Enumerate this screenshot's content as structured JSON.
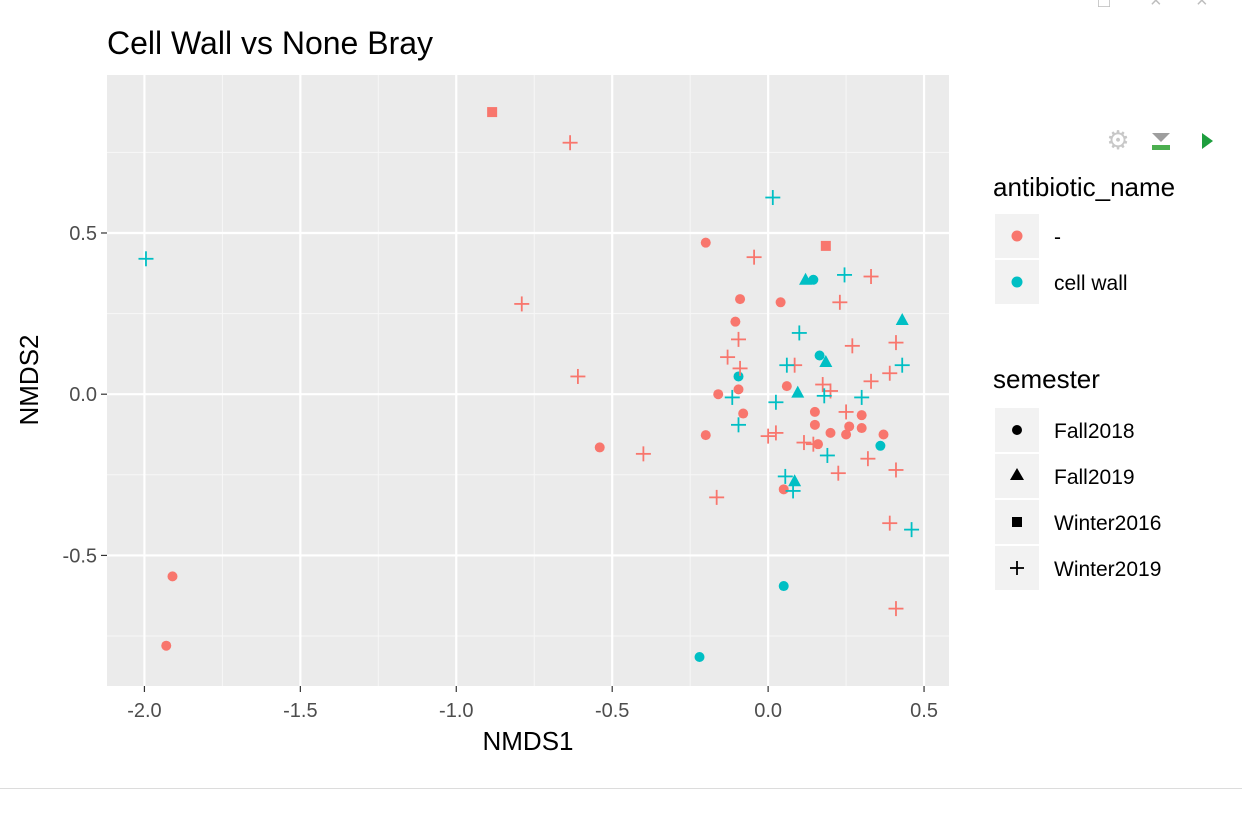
{
  "chart_data": {
    "type": "scatter",
    "title": "Cell Wall vs None Bray",
    "xlabel": "NMDS1",
    "ylabel": "NMDS2",
    "xlim": [
      -2.12,
      0.58
    ],
    "ylim": [
      -0.905,
      0.99
    ],
    "x_ticks": [
      -2.0,
      -1.5,
      -1.0,
      -0.5,
      0.0,
      0.5
    ],
    "x_tick_labels": [
      "-2.0",
      "-1.5",
      "-1.0",
      "-0.5",
      "0.0",
      "0.5"
    ],
    "y_ticks": [
      -0.5,
      0.0,
      0.5
    ],
    "y_tick_labels": [
      "-0.5",
      "0.0",
      "0.5"
    ],
    "grid": true,
    "legend_placement": "right",
    "colors": {
      "none": "#f8766d",
      "cell_wall": "#00bfc4"
    },
    "legends": [
      {
        "title": "antibiotic_name",
        "entries": [
          {
            "label": "-",
            "color": "#f8766d"
          },
          {
            "label": "cell wall",
            "color": "#00bfc4"
          }
        ]
      },
      {
        "title": "semester",
        "entries": [
          {
            "label": "Fall2018",
            "shape": "circle"
          },
          {
            "label": "Fall2019",
            "shape": "triangle"
          },
          {
            "label": "Winter2016",
            "shape": "square"
          },
          {
            "label": "Winter2019",
            "shape": "plus"
          }
        ]
      }
    ],
    "points": [
      {
        "x": -1.91,
        "y": -0.565,
        "group": "-",
        "semester": "Fall2018"
      },
      {
        "x": -1.93,
        "y": -0.78,
        "group": "-",
        "semester": "Fall2018"
      },
      {
        "x": -0.54,
        "y": -0.165,
        "group": "-",
        "semester": "Fall2018"
      },
      {
        "x": -0.2,
        "y": 0.47,
        "group": "-",
        "semester": "Fall2018"
      },
      {
        "x": -0.2,
        "y": -0.127,
        "group": "-",
        "semester": "Fall2018"
      },
      {
        "x": -0.16,
        "y": 0.0,
        "group": "-",
        "semester": "Fall2018"
      },
      {
        "x": -0.105,
        "y": 0.225,
        "group": "-",
        "semester": "Fall2018"
      },
      {
        "x": -0.09,
        "y": 0.295,
        "group": "-",
        "semester": "Fall2018"
      },
      {
        "x": -0.095,
        "y": 0.015,
        "group": "-",
        "semester": "Fall2018"
      },
      {
        "x": -0.08,
        "y": -0.06,
        "group": "-",
        "semester": "Fall2018"
      },
      {
        "x": 0.04,
        "y": 0.285,
        "group": "-",
        "semester": "Fall2018"
      },
      {
        "x": 0.06,
        "y": 0.025,
        "group": "-",
        "semester": "Fall2018"
      },
      {
        "x": 0.05,
        "y": -0.295,
        "group": "-",
        "semester": "Fall2018"
      },
      {
        "x": 0.15,
        "y": -0.055,
        "group": "-",
        "semester": "Fall2018"
      },
      {
        "x": 0.15,
        "y": -0.095,
        "group": "-",
        "semester": "Fall2018"
      },
      {
        "x": 0.16,
        "y": -0.155,
        "group": "-",
        "semester": "Fall2018"
      },
      {
        "x": 0.2,
        "y": -0.12,
        "group": "-",
        "semester": "Fall2018"
      },
      {
        "x": 0.25,
        "y": -0.125,
        "group": "-",
        "semester": "Fall2018"
      },
      {
        "x": 0.26,
        "y": -0.1,
        "group": "-",
        "semester": "Fall2018"
      },
      {
        "x": 0.3,
        "y": -0.065,
        "group": "-",
        "semester": "Fall2018"
      },
      {
        "x": 0.3,
        "y": -0.105,
        "group": "-",
        "semester": "Fall2018"
      },
      {
        "x": 0.37,
        "y": -0.125,
        "group": "-",
        "semester": "Fall2018"
      },
      {
        "x": -0.22,
        "y": -0.815,
        "group": "cell wall",
        "semester": "Fall2018"
      },
      {
        "x": -0.095,
        "y": 0.055,
        "group": "cell wall",
        "semester": "Fall2018"
      },
      {
        "x": 0.05,
        "y": -0.595,
        "group": "cell wall",
        "semester": "Fall2018"
      },
      {
        "x": 0.145,
        "y": 0.355,
        "group": "cell wall",
        "semester": "Fall2018"
      },
      {
        "x": 0.165,
        "y": 0.12,
        "group": "cell wall",
        "semester": "Fall2018"
      },
      {
        "x": 0.36,
        "y": -0.16,
        "group": "cell wall",
        "semester": "Fall2018"
      },
      {
        "x": 0.12,
        "y": 0.355,
        "group": "cell wall",
        "semester": "Fall2019"
      },
      {
        "x": 0.185,
        "y": 0.1,
        "group": "cell wall",
        "semester": "Fall2019"
      },
      {
        "x": 0.095,
        "y": 0.005,
        "group": "cell wall",
        "semester": "Fall2019"
      },
      {
        "x": 0.085,
        "y": -0.27,
        "group": "cell wall",
        "semester": "Fall2019"
      },
      {
        "x": 0.43,
        "y": 0.23,
        "group": "cell wall",
        "semester": "Fall2019"
      },
      {
        "x": -0.885,
        "y": 0.875,
        "group": "-",
        "semester": "Winter2016"
      },
      {
        "x": 0.185,
        "y": 0.46,
        "group": "-",
        "semester": "Winter2016"
      },
      {
        "x": -0.635,
        "y": 0.78,
        "group": "-",
        "semester": "Winter2019"
      },
      {
        "x": -0.79,
        "y": 0.28,
        "group": "-",
        "semester": "Winter2019"
      },
      {
        "x": -0.61,
        "y": 0.055,
        "group": "-",
        "semester": "Winter2019"
      },
      {
        "x": -0.4,
        "y": -0.185,
        "group": "-",
        "semester": "Winter2019"
      },
      {
        "x": -0.165,
        "y": -0.32,
        "group": "-",
        "semester": "Winter2019"
      },
      {
        "x": -0.045,
        "y": 0.425,
        "group": "-",
        "semester": "Winter2019"
      },
      {
        "x": -0.13,
        "y": 0.115,
        "group": "-",
        "semester": "Winter2019"
      },
      {
        "x": -0.095,
        "y": 0.17,
        "group": "-",
        "semester": "Winter2019"
      },
      {
        "x": -0.09,
        "y": 0.08,
        "group": "-",
        "semester": "Winter2019"
      },
      {
        "x": 0.0,
        "y": -0.13,
        "group": "-",
        "semester": "Winter2019"
      },
      {
        "x": 0.025,
        "y": -0.12,
        "group": "-",
        "semester": "Winter2019"
      },
      {
        "x": 0.085,
        "y": 0.09,
        "group": "-",
        "semester": "Winter2019"
      },
      {
        "x": 0.115,
        "y": -0.15,
        "group": "-",
        "semester": "Winter2019"
      },
      {
        "x": 0.145,
        "y": -0.155,
        "group": "-",
        "semester": "Winter2019"
      },
      {
        "x": 0.175,
        "y": 0.03,
        "group": "-",
        "semester": "Winter2019"
      },
      {
        "x": 0.2,
        "y": 0.01,
        "group": "-",
        "semester": "Winter2019"
      },
      {
        "x": 0.23,
        "y": 0.285,
        "group": "-",
        "semester": "Winter2019"
      },
      {
        "x": 0.225,
        "y": -0.245,
        "group": "-",
        "semester": "Winter2019"
      },
      {
        "x": 0.25,
        "y": -0.055,
        "group": "-",
        "semester": "Winter2019"
      },
      {
        "x": 0.27,
        "y": 0.15,
        "group": "-",
        "semester": "Winter2019"
      },
      {
        "x": 0.33,
        "y": 0.365,
        "group": "-",
        "semester": "Winter2019"
      },
      {
        "x": 0.33,
        "y": 0.04,
        "group": "-",
        "semester": "Winter2019"
      },
      {
        "x": 0.32,
        "y": -0.2,
        "group": "-",
        "semester": "Winter2019"
      },
      {
        "x": 0.39,
        "y": 0.065,
        "group": "-",
        "semester": "Winter2019"
      },
      {
        "x": 0.41,
        "y": 0.16,
        "group": "-",
        "semester": "Winter2019"
      },
      {
        "x": 0.41,
        "y": -0.235,
        "group": "-",
        "semester": "Winter2019"
      },
      {
        "x": 0.39,
        "y": -0.4,
        "group": "-",
        "semester": "Winter2019"
      },
      {
        "x": 0.41,
        "y": -0.665,
        "group": "-",
        "semester": "Winter2019"
      },
      {
        "x": -1.995,
        "y": 0.42,
        "group": "cell wall",
        "semester": "Winter2019"
      },
      {
        "x": 0.015,
        "y": 0.61,
        "group": "cell wall",
        "semester": "Winter2019"
      },
      {
        "x": 0.245,
        "y": 0.37,
        "group": "cell wall",
        "semester": "Winter2019"
      },
      {
        "x": 0.1,
        "y": 0.19,
        "group": "cell wall",
        "semester": "Winter2019"
      },
      {
        "x": 0.06,
        "y": 0.09,
        "group": "cell wall",
        "semester": "Winter2019"
      },
      {
        "x": -0.115,
        "y": -0.01,
        "group": "cell wall",
        "semester": "Winter2019"
      },
      {
        "x": -0.095,
        "y": -0.095,
        "group": "cell wall",
        "semester": "Winter2019"
      },
      {
        "x": 0.025,
        "y": -0.025,
        "group": "cell wall",
        "semester": "Winter2019"
      },
      {
        "x": 0.18,
        "y": -0.005,
        "group": "cell wall",
        "semester": "Winter2019"
      },
      {
        "x": 0.3,
        "y": -0.01,
        "group": "cell wall",
        "semester": "Winter2019"
      },
      {
        "x": 0.19,
        "y": -0.19,
        "group": "cell wall",
        "semester": "Winter2019"
      },
      {
        "x": 0.055,
        "y": -0.255,
        "group": "cell wall",
        "semester": "Winter2019"
      },
      {
        "x": 0.08,
        "y": -0.3,
        "group": "cell wall",
        "semester": "Winter2019"
      },
      {
        "x": 0.43,
        "y": 0.09,
        "group": "cell wall",
        "semester": "Winter2019"
      },
      {
        "x": 0.46,
        "y": -0.42,
        "group": "cell wall",
        "semester": "Winter2019"
      }
    ]
  },
  "toolbar": {
    "icons": [
      "gear-icon",
      "clear-output-icon",
      "run-icon"
    ]
  }
}
